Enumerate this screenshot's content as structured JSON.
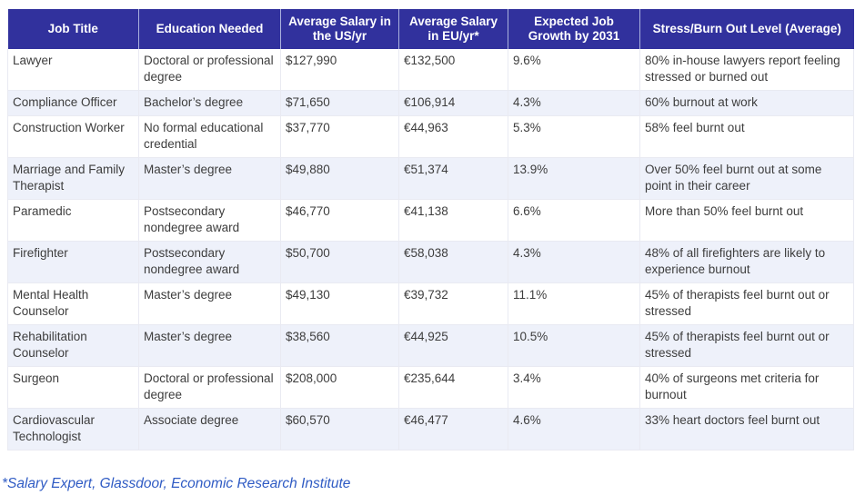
{
  "colors": {
    "header_bg": "#31319d",
    "header_text": "#ffffff",
    "row_alt_bg": "#eef1fa",
    "body_text": "#3d3d3d",
    "footnote_text": "#2f5bc4"
  },
  "table": {
    "columns": [
      {
        "key": "job_title",
        "label": "Job Title"
      },
      {
        "key": "education",
        "label": "Education Needed"
      },
      {
        "key": "salary_us",
        "label": "Average Salary in the US/yr"
      },
      {
        "key": "salary_eu",
        "label": "Average Salary in EU/yr*"
      },
      {
        "key": "job_growth",
        "label": "Expected Job Growth by 2031"
      },
      {
        "key": "stress",
        "label": "Stress/Burn Out Level (Average)"
      }
    ],
    "rows": [
      {
        "job_title": "Lawyer",
        "education": "Doctoral or professional degree",
        "salary_us": "$127,990",
        "salary_eu": "€132,500",
        "job_growth": "9.6%",
        "stress": "80% in-house lawyers report feeling stressed or burned out"
      },
      {
        "job_title": "Compliance Officer",
        "education": "Bachelor’s degree",
        "salary_us": "$71,650",
        "salary_eu": "€106,914",
        "job_growth": "4.3%",
        "stress": "60% burnout at work"
      },
      {
        "job_title": "Construction Worker",
        "education": "No formal educational credential",
        "salary_us": "$37,770",
        "salary_eu": "€44,963",
        "job_growth": "5.3%",
        "stress": "58% feel burnt out"
      },
      {
        "job_title": "Marriage and Family Therapist",
        "education": "Master’s degree",
        "salary_us": "$49,880",
        "salary_eu": "€51,374",
        "job_growth": "13.9%",
        "stress": "Over 50% feel burnt out at some point in their career"
      },
      {
        "job_title": "Paramedic",
        "education": "Postsecondary nondegree award",
        "salary_us": "$46,770",
        "salary_eu": "€41,138",
        "job_growth": "6.6%",
        "stress": "More than 50% feel burnt out"
      },
      {
        "job_title": "Firefighter",
        "education": "Postsecondary nondegree award",
        "salary_us": "$50,700",
        "salary_eu": "€58,038",
        "job_growth": "4.3%",
        "stress": "48% of all firefighters are likely to experience burnout"
      },
      {
        "job_title": "Mental Health Counselor",
        "education": "Master’s degree",
        "salary_us": "$49,130",
        "salary_eu": "€39,732",
        "job_growth": "11.1%",
        "stress": "45% of therapists feel burnt out or stressed"
      },
      {
        "job_title": "Rehabilitation Counselor",
        "education": "Master’s degree",
        "salary_us": "$38,560",
        "salary_eu": "€44,925",
        "job_growth": "10.5%",
        "stress": "45% of therapists feel burnt out or stressed"
      },
      {
        "job_title": "Surgeon",
        "education": "Doctoral or professional degree",
        "salary_us": "$208,000",
        "salary_eu": "€235,644",
        "job_growth": "3.4%",
        "stress": "40% of surgeons met criteria for burnout"
      },
      {
        "job_title": "Cardiovascular Technologist",
        "education": "Associate degree",
        "salary_us": "$60,570",
        "salary_eu": "€46,477",
        "job_growth": "4.6%",
        "stress": "33% heart doctors feel burnt out"
      }
    ]
  },
  "footnote": "*Salary Expert, Glassdoor, Economic Research Institute"
}
